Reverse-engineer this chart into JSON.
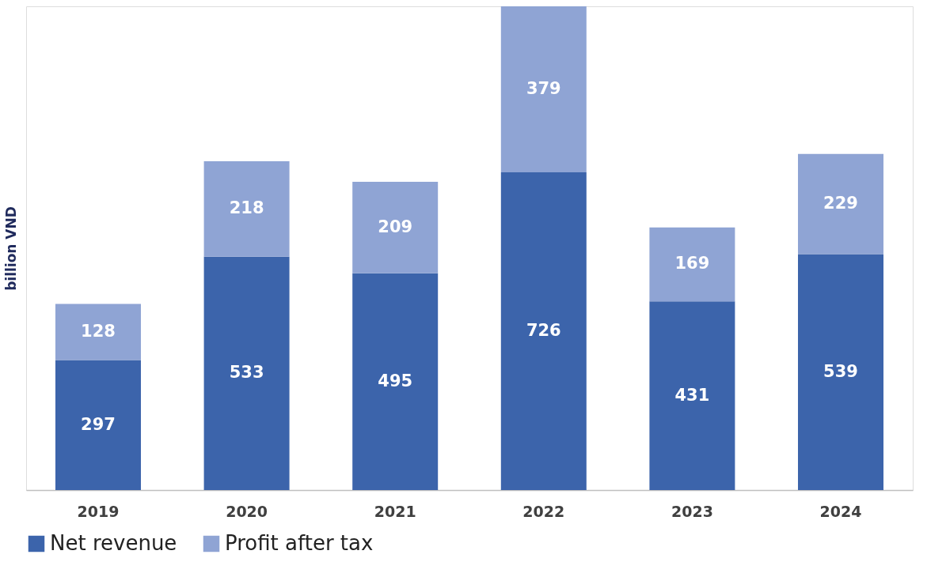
{
  "chart_data": {
    "type": "bar",
    "stacked": true,
    "ylabel": "billion VND",
    "categories": [
      "2019",
      "2020",
      "2021",
      "2022",
      "2023",
      "2024"
    ],
    "series": [
      {
        "name": "Net revenue",
        "color": "#3c64ab",
        "values": [
          297,
          533,
          495,
          726,
          431,
          539
        ]
      },
      {
        "name": "Profit after tax",
        "color": "#8fa4d4",
        "values": [
          128,
          218,
          209,
          379,
          169,
          229
        ]
      }
    ],
    "data_labels": true,
    "legend": "bottom",
    "grid": false,
    "tick_labels": "x"
  }
}
